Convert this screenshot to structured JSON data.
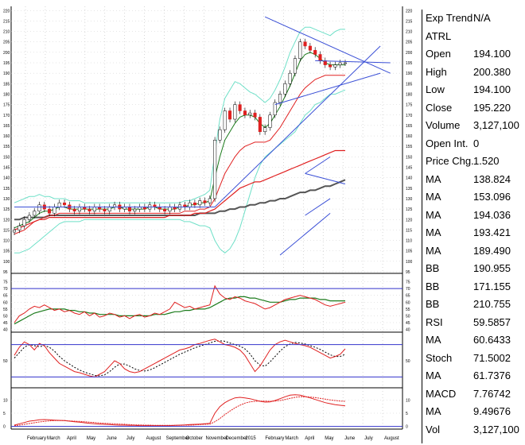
{
  "data_panel": {
    "rows": [
      {
        "label": "Exp Trend",
        "value": "N/A"
      },
      {
        "label": "ATRL",
        "value": ""
      },
      {
        "label": "Open",
        "value": "194.100"
      },
      {
        "label": "High",
        "value": "200.380"
      },
      {
        "label": "Low",
        "value": "194.100"
      },
      {
        "label": "Close",
        "value": "195.220"
      },
      {
        "label": "Volume",
        "value": "3,127,100"
      },
      {
        "label": "Open Int.",
        "value": "0"
      },
      {
        "label": "Price Chg.",
        "value": "1.520"
      },
      {
        "label": "MA",
        "value": "138.824"
      },
      {
        "label": "MA",
        "value": "153.096"
      },
      {
        "label": "MA",
        "value": "194.036"
      },
      {
        "label": "MA",
        "value": "193.421"
      },
      {
        "label": "MA",
        "value": "189.490"
      },
      {
        "label": "BB",
        "value": "190.955"
      },
      {
        "label": "BB",
        "value": "171.155"
      },
      {
        "label": "BB",
        "value": "210.755"
      },
      {
        "label": "RSI",
        "value": "59.5857"
      },
      {
        "label": "MA",
        "value": "60.6433"
      },
      {
        "label": "Stoch",
        "value": "71.5002"
      },
      {
        "label": "MA",
        "value": "61.7376"
      },
      {
        "label": "MACD",
        "value": "7.76742"
      },
      {
        "label": "MA",
        "value": "9.49676"
      },
      {
        "label": "Vol",
        "value": "3,127,100"
      }
    ]
  },
  "colors": {
    "up": "#2e8b2e",
    "down": "#e02020",
    "trend": "#3a4fd6",
    "bb": "#6fe0c8",
    "ma_long": "#555555",
    "ma_mid": "#e02020",
    "ma_short": "#1a7a1a",
    "indicator_line": "#3333cc"
  },
  "chart_data": [
    {
      "type": "line",
      "name": "price-panel",
      "x_tick_labels": [
        "February",
        "March",
        "April",
        "May",
        "June",
        "July",
        "August",
        "September",
        "October",
        "November",
        "December",
        "2015",
        "February",
        "March",
        "April",
        "May",
        "June",
        "July",
        "August"
      ],
      "y_tick_labels": [
        "220",
        "215",
        "210",
        "205",
        "200",
        "195",
        "190",
        "185",
        "180",
        "175",
        "170",
        "165",
        "160",
        "155",
        "150",
        "145",
        "140",
        "135",
        "130",
        "125",
        "120",
        "115",
        "110",
        "105",
        "100",
        "95"
      ],
      "ylim": [
        95,
        222
      ],
      "series": [
        {
          "role": "close",
          "values": [
            115,
            117,
            120,
            122,
            124,
            127,
            125,
            123,
            126,
            128,
            127,
            125,
            124,
            126,
            125,
            124,
            126,
            125,
            124,
            126,
            127,
            125,
            126,
            124,
            125,
            126,
            125,
            127,
            126,
            125,
            124,
            126,
            125,
            127,
            126,
            128,
            127,
            129,
            128,
            130,
            158,
            163,
            172,
            168,
            175,
            172,
            170,
            171,
            169,
            162,
            164,
            170,
            176,
            180,
            185,
            190,
            197,
            205,
            203,
            201,
            199,
            196,
            194,
            193,
            194,
            195,
            195
          ]
        },
        {
          "role": "ma_short",
          "values": [
            116,
            117,
            118,
            119,
            121,
            123,
            124,
            124,
            125,
            126,
            126,
            125,
            125,
            125,
            125,
            125,
            125,
            125,
            125,
            125,
            126,
            126,
            125,
            125,
            125,
            125,
            125,
            126,
            126,
            125,
            125,
            125,
            125,
            126,
            126,
            127,
            127,
            128,
            128,
            129,
            140,
            150,
            158,
            162,
            166,
            169,
            170,
            170,
            169,
            166,
            164,
            166,
            170,
            174,
            179,
            184,
            190,
            196,
            199,
            200,
            199,
            197,
            195,
            194,
            194,
            194,
            194
          ]
        },
        {
          "role": "ma_mid",
          "values": [
            113,
            114,
            115,
            117,
            119,
            120,
            121,
            122,
            122,
            123,
            123,
            123,
            123,
            123,
            123,
            123,
            123,
            123,
            123,
            123,
            123,
            123,
            123,
            123,
            123,
            123,
            123,
            123,
            123,
            123,
            123,
            123,
            123,
            123,
            124,
            124,
            124,
            125,
            125,
            126,
            130,
            136,
            142,
            146,
            150,
            153,
            155,
            156,
            157,
            157,
            157,
            158,
            161,
            164,
            168,
            172,
            176,
            180,
            183,
            185,
            187,
            188,
            189,
            189,
            189,
            189,
            189
          ]
        },
        {
          "role": "ma_long_red",
          "values": [
            115,
            116,
            117,
            118,
            119,
            120,
            120,
            121,
            121,
            121,
            121,
            121,
            121,
            121,
            121,
            121,
            121,
            121,
            121,
            121,
            121,
            121,
            121,
            121,
            121,
            121,
            121,
            121,
            121,
            121,
            121,
            122,
            122,
            122,
            122,
            122,
            123,
            123,
            123,
            124,
            125,
            127,
            129,
            131,
            133,
            135,
            136,
            137,
            138,
            138,
            139,
            140,
            141,
            142,
            143,
            144,
            145,
            146,
            147,
            148,
            149,
            150,
            151,
            152,
            153,
            153,
            153
          ]
        },
        {
          "role": "ma_long_gray",
          "values": [
            120,
            120,
            121,
            121,
            121,
            121,
            121,
            122,
            122,
            122,
            122,
            122,
            122,
            122,
            122,
            122,
            122,
            122,
            122,
            122,
            122,
            122,
            122,
            122,
            122,
            122,
            122,
            122,
            122,
            122,
            122,
            122,
            122,
            122,
            122,
            122,
            122,
            123,
            123,
            123,
            123,
            124,
            124,
            125,
            125,
            126,
            126,
            127,
            127,
            128,
            128,
            129,
            129,
            130,
            130,
            131,
            132,
            133,
            133,
            134,
            134,
            135,
            136,
            136,
            137,
            138,
            139
          ]
        },
        {
          "role": "bb_upper",
          "values": [
            128,
            129,
            130,
            131,
            131,
            132,
            131,
            131,
            130,
            130,
            130,
            129,
            129,
            129,
            128,
            128,
            128,
            128,
            128,
            128,
            128,
            128,
            128,
            128,
            128,
            128,
            128,
            128,
            128,
            128,
            128,
            128,
            128,
            128,
            129,
            129,
            130,
            131,
            132,
            134,
            152,
            168,
            178,
            182,
            186,
            185,
            183,
            181,
            180,
            178,
            176,
            178,
            182,
            187,
            193,
            200,
            205,
            210,
            212,
            212,
            211,
            210,
            209,
            208,
            210,
            211,
            211
          ]
        },
        {
          "role": "bb_lower",
          "values": [
            104,
            104,
            105,
            106,
            108,
            110,
            112,
            114,
            116,
            118,
            119,
            119,
            119,
            119,
            120,
            120,
            120,
            120,
            120,
            120,
            120,
            120,
            120,
            120,
            120,
            120,
            120,
            120,
            120,
            120,
            120,
            120,
            120,
            120,
            119,
            119,
            118,
            117,
            117,
            116,
            110,
            106,
            104,
            106,
            110,
            116,
            124,
            132,
            140,
            146,
            150,
            152,
            154,
            156,
            158,
            160,
            162,
            166,
            170,
            172,
            175,
            176,
            178,
            180,
            180,
            181,
            182
          ]
        }
      ]
    },
    {
      "type": "line",
      "name": "rsi-panel",
      "y_tick_labels": [
        "75",
        "70",
        "65",
        "60",
        "55",
        "50",
        "45",
        "40"
      ],
      "ylim": [
        38,
        80
      ],
      "series": [
        {
          "role": "rsi",
          "values": [
            45,
            50,
            52,
            55,
            57,
            56,
            58,
            56,
            54,
            55,
            53,
            54,
            52,
            51,
            53,
            50,
            52,
            49,
            50,
            52,
            51,
            49,
            50,
            48,
            50,
            51,
            49,
            50,
            52,
            51,
            53,
            55,
            60,
            58,
            56,
            57,
            55,
            56,
            57,
            58,
            72,
            66,
            63,
            62,
            64,
            63,
            61,
            60,
            59,
            57,
            55,
            56,
            58,
            60,
            62,
            63,
            64,
            65,
            64,
            63,
            62,
            60,
            58,
            57,
            58,
            59,
            60
          ]
        },
        {
          "role": "ma",
          "values": [
            44,
            46,
            48,
            50,
            52,
            53,
            54,
            55,
            55,
            55,
            55,
            54,
            54,
            53,
            53,
            52,
            52,
            51,
            51,
            51,
            51,
            50,
            50,
            50,
            50,
            50,
            50,
            50,
            51,
            51,
            51,
            52,
            53,
            53,
            54,
            54,
            55,
            55,
            55,
            56,
            58,
            60,
            62,
            63,
            63,
            64,
            64,
            63,
            63,
            62,
            61,
            60,
            60,
            60,
            61,
            62,
            62,
            63,
            63,
            63,
            63,
            62,
            62,
            61,
            61,
            61,
            61
          ]
        }
      ]
    },
    {
      "type": "line",
      "name": "stoch-panel",
      "y_tick_labels": [
        "50"
      ],
      "ylim": [
        0,
        100
      ],
      "series": [
        {
          "role": "stoch",
          "values": [
            60,
            75,
            85,
            80,
            70,
            82,
            78,
            65,
            55,
            45,
            40,
            35,
            30,
            28,
            25,
            22,
            20,
            25,
            30,
            40,
            50,
            45,
            35,
            30,
            28,
            30,
            35,
            40,
            45,
            50,
            55,
            60,
            65,
            70,
            72,
            75,
            80,
            82,
            85,
            88,
            90,
            85,
            80,
            78,
            75,
            70,
            60,
            45,
            30,
            40,
            55,
            70,
            80,
            85,
            88,
            85,
            82,
            80,
            78,
            75,
            70,
            65,
            60,
            55,
            58,
            62,
            72
          ]
        },
        {
          "role": "ma",
          "values": [
            55,
            65,
            75,
            80,
            78,
            76,
            78,
            75,
            68,
            58,
            50,
            44,
            38,
            33,
            29,
            26,
            23,
            22,
            24,
            30,
            38,
            44,
            44,
            40,
            35,
            32,
            31,
            33,
            37,
            42,
            47,
            52,
            57,
            62,
            66,
            70,
            74,
            77,
            80,
            83,
            86,
            87,
            86,
            83,
            80,
            77,
            72,
            63,
            50,
            42,
            40,
            48,
            58,
            68,
            76,
            81,
            84,
            83,
            81,
            78,
            75,
            71,
            66,
            61,
            58,
            58,
            62
          ]
        }
      ]
    },
    {
      "type": "line",
      "name": "macd-panel",
      "y_tick_labels": [
        "10",
        "5",
        "0"
      ],
      "ylim": [
        -1,
        14
      ],
      "series": [
        {
          "role": "macd",
          "values": [
            0.5,
            1,
            1.5,
            2,
            2.2,
            2.5,
            2.6,
            2.5,
            2.4,
            2.3,
            2.2,
            2,
            1.8,
            1.6,
            1.4,
            1.2,
            1,
            0.9,
            0.8,
            0.7,
            0.6,
            0.5,
            0.5,
            0.4,
            0.4,
            0.3,
            0.3,
            0.3,
            0.3,
            0.3,
            0.3,
            0.3,
            0.4,
            0.5,
            0.6,
            0.7,
            0.8,
            0.9,
            1,
            1.2,
            5,
            7.5,
            9,
            10,
            10.8,
            11,
            10.8,
            10.5,
            10,
            9.5,
            9.2,
            9.3,
            9.8,
            10.5,
            11.2,
            11.8,
            12,
            11.8,
            11.3,
            10.8,
            10.2,
            9.6,
            9,
            8.6,
            8.2,
            8,
            7.8
          ]
        },
        {
          "role": "ma",
          "values": [
            0.3,
            0.5,
            0.8,
            1.1,
            1.4,
            1.7,
            1.9,
            2.1,
            2.2,
            2.2,
            2.2,
            2.1,
            2,
            1.9,
            1.8,
            1.6,
            1.5,
            1.3,
            1.2,
            1.1,
            1,
            0.9,
            0.8,
            0.7,
            0.6,
            0.6,
            0.5,
            0.5,
            0.4,
            0.4,
            0.4,
            0.4,
            0.4,
            0.4,
            0.5,
            0.5,
            0.6,
            0.7,
            0.8,
            0.9,
            1.8,
            3,
            4.5,
            5.8,
            7,
            8,
            8.8,
            9.3,
            9.5,
            9.6,
            9.6,
            9.5,
            9.6,
            9.8,
            10.2,
            10.6,
            11,
            11.2,
            11.2,
            11.1,
            10.9,
            10.6,
            10.3,
            10,
            9.8,
            9.6,
            9.5
          ]
        }
      ]
    }
  ]
}
